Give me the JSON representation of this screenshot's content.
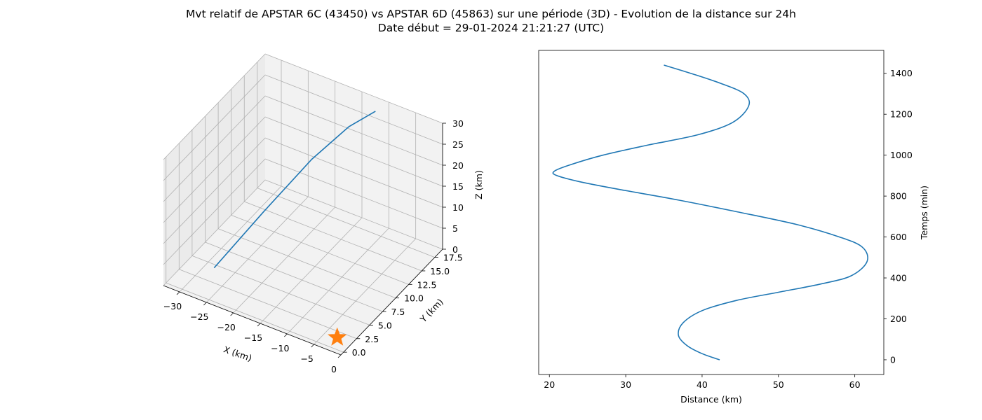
{
  "figure": {
    "title_line1": "Mvt relatif de APSTAR 6C (43450) vs APSTAR 6D (45863) sur une période (3D) - Evolution de la distance sur 24h",
    "title_line2": "Date début = 29-01-2024 21:21:27 (UTC)"
  },
  "colors": {
    "series": "#1f77b4",
    "marker": "#ff7f0e",
    "pane": "#f2f2f2",
    "grid": "#b0b0b0"
  },
  "chart_data": [
    {
      "type": "line3d",
      "xlabel": "X (km)",
      "ylabel": "Y (km)",
      "zlabel": "Z (km)",
      "xlim": [
        -33,
        0
      ],
      "ylim": [
        -0.5,
        19
      ],
      "zlim": [
        0,
        30
      ],
      "x_ticks": [
        -30,
        -25,
        -20,
        -15,
        -10,
        -5,
        0
      ],
      "x_tick_labels": [
        "−30",
        "−25",
        "−20",
        "−15",
        "−10",
        "−5",
        "0"
      ],
      "y_ticks": [
        0,
        2.5,
        5,
        7.5,
        10,
        12.5,
        15,
        17.5
      ],
      "y_tick_labels": [
        "0.0",
        "2.5",
        "5.0",
        "7.5",
        "10.0",
        "12.5",
        "15.0",
        "17.5"
      ],
      "z_ticks": [
        0,
        5,
        10,
        15,
        20,
        25,
        30
      ],
      "z_tick_labels": [
        "0",
        "5",
        "10",
        "15",
        "20",
        "25",
        "30"
      ],
      "grid": true,
      "trajectory": {
        "x": [
          -26.0,
          -22.5,
          -19.0,
          -15.5,
          -12.0
        ],
        "y": [
          2.0,
          7.8,
          13.5,
          17.0,
          18.5
        ],
        "z": [
          4.5,
          12.0,
          19.0,
          24.0,
          27.5
        ]
      },
      "origin_marker": {
        "x": 0,
        "y": 0,
        "z": 0,
        "symbol": "star"
      }
    },
    {
      "type": "line",
      "xlabel": "Distance (km)",
      "ylabel": "Temps (min)",
      "xlim": [
        18.6,
        63.8
      ],
      "ylim": [
        -72,
        1512
      ],
      "x_ticks": [
        20,
        30,
        40,
        50,
        60
      ],
      "y_ticks": [
        0,
        200,
        400,
        600,
        800,
        1000,
        1200,
        1400
      ],
      "grid": false,
      "series": [
        {
          "distance": [
            42.3,
            40.0,
            38.0,
            36.9,
            37.5,
            40.0,
            44.5,
            50.0,
            55.5,
            59.5,
            61.6,
            61.0,
            58.0,
            52.5,
            45.0,
            37.0,
            29.5,
            24.0,
            21.0,
            20.6,
            22.5,
            27.0,
            33.0,
            39.5,
            44.0,
            46.1,
            45.5,
            42.5,
            38.5,
            35.0
          ],
          "time": [
            0,
            30,
            70,
            120,
            180,
            240,
            290,
            330,
            370,
            410,
            480,
            550,
            600,
            660,
            720,
            780,
            830,
            870,
            900,
            920,
            950,
            1000,
            1050,
            1100,
            1160,
            1240,
            1300,
            1350,
            1400,
            1440
          ]
        }
      ]
    }
  ]
}
